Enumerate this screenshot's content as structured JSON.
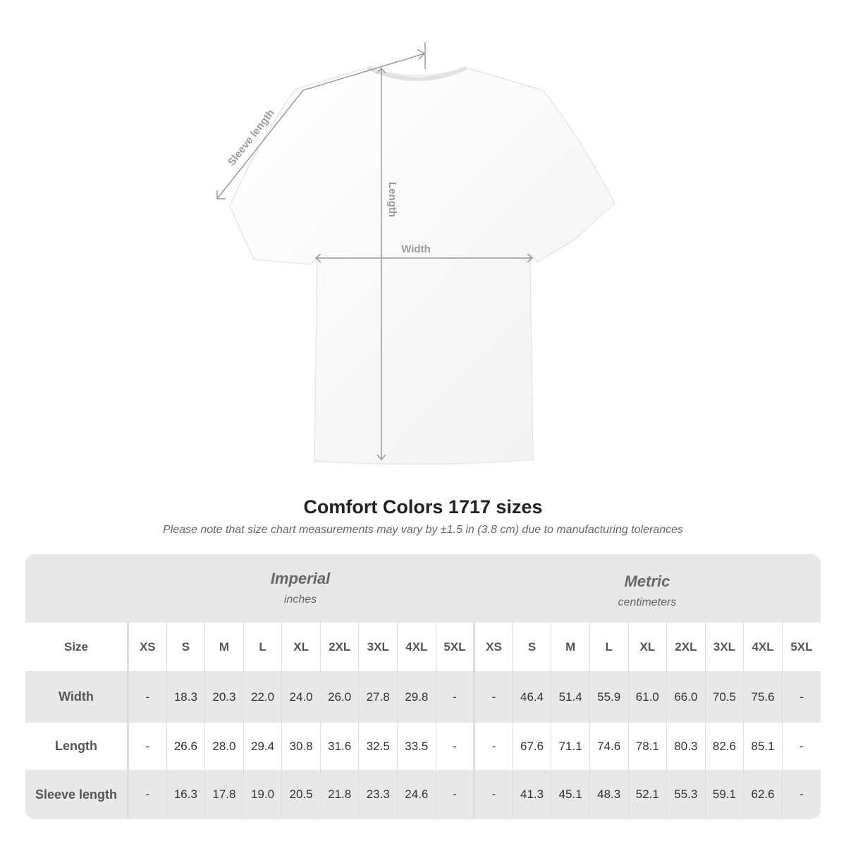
{
  "diagram": {
    "sleeve_label": "Sleeve length",
    "length_label": "Length",
    "width_label": "Width"
  },
  "title": "Comfort Colors 1717 sizes",
  "note": "Please note that size chart measurements may vary by ±1.5 in (3.8 cm) due to manufacturing tolerances",
  "imperial": {
    "name": "Imperial",
    "unit": "inches"
  },
  "metric": {
    "name": "Metric",
    "unit": "centimeters"
  },
  "header_label": "Size",
  "sizes": [
    "XS",
    "S",
    "M",
    "L",
    "XL",
    "2XL",
    "3XL",
    "4XL",
    "5XL"
  ],
  "rows": [
    {
      "label": "Width",
      "imperial": [
        "-",
        "18.3",
        "20.3",
        "22.0",
        "24.0",
        "26.0",
        "27.8",
        "29.8",
        "-"
      ],
      "metric": [
        "-",
        "46.4",
        "51.4",
        "55.9",
        "61.0",
        "66.0",
        "70.5",
        "75.6",
        "-"
      ]
    },
    {
      "label": "Length",
      "imperial": [
        "-",
        "26.6",
        "28.0",
        "29.4",
        "30.8",
        "31.6",
        "32.5",
        "33.5",
        "-"
      ],
      "metric": [
        "-",
        "67.6",
        "71.1",
        "74.6",
        "78.1",
        "80.3",
        "82.6",
        "85.1",
        "-"
      ]
    },
    {
      "label": "Sleeve length",
      "imperial": [
        "-",
        "16.3",
        "17.8",
        "19.0",
        "20.5",
        "21.8",
        "23.3",
        "24.6",
        "-"
      ],
      "metric": [
        "-",
        "41.3",
        "45.1",
        "48.3",
        "52.1",
        "55.3",
        "59.1",
        "62.6",
        "-"
      ]
    }
  ]
}
